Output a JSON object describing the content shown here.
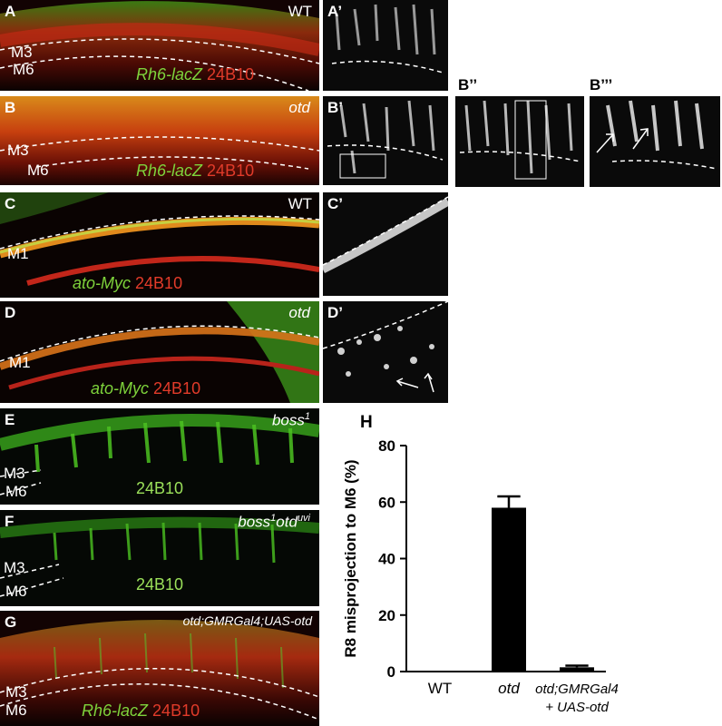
{
  "panels": {
    "A": {
      "label": "A",
      "genotype": "WT",
      "layer_top": "M3",
      "layer_bottom": "M6",
      "reporter": "Rh6-lacZ",
      "stain": "24B10"
    },
    "A1": {
      "label": "A’"
    },
    "B": {
      "label": "B",
      "genotype": "otd",
      "layer_top": "M3",
      "layer_bottom": "M6",
      "reporter": "Rh6-lacZ",
      "stain": "24B10"
    },
    "B1": {
      "label": "B’"
    },
    "B2": {
      "label": "B’’"
    },
    "B3": {
      "label": "B’’’"
    },
    "C": {
      "label": "C",
      "genotype": "WT",
      "layer": "M1",
      "reporter": "ato-Myc",
      "stain": "24B10"
    },
    "C1": {
      "label": "C’"
    },
    "D": {
      "label": "D",
      "genotype": "otd",
      "layer": "M1",
      "reporter": "ato-Myc",
      "stain": "24B10"
    },
    "D1": {
      "label": "D’"
    },
    "E": {
      "label": "E",
      "genotype": "boss",
      "genotype_sup": "1",
      "layer_top": "M3",
      "layer_bottom": "M6",
      "stain": "24B10"
    },
    "F": {
      "label": "F",
      "genotype": "boss",
      "genotype_sup": "1",
      "genotype2": "otd",
      "genotype2_sup": "uvi",
      "layer_top": "M3",
      "layer_bottom": "M6",
      "stain": "24B10"
    },
    "G": {
      "label": "G",
      "genotype": "otd;GMRGal4;UAS-otd",
      "layer_top": "M3",
      "layer_bottom": "M6",
      "reporter": "Rh6-lacZ",
      "stain": "24B10"
    },
    "H": {
      "label": "H"
    }
  },
  "chart_data": {
    "type": "bar",
    "categories": [
      "WT",
      "otd",
      "otd;GMRGal4"
    ],
    "category_line2": [
      "",
      "",
      "+ UAS-otd"
    ],
    "values": [
      0,
      58,
      1.5
    ],
    "errors": [
      0,
      4,
      0.6
    ],
    "ylabel": "R8 misprojection to M6 (%)",
    "xlabel": "",
    "ylim": [
      0,
      80
    ],
    "yticks": [
      0,
      20,
      40,
      60,
      80
    ],
    "bar_color": "#000000"
  },
  "colors": {
    "green": "#5fcf2a",
    "red": "#d8321e",
    "background": "#000000"
  }
}
